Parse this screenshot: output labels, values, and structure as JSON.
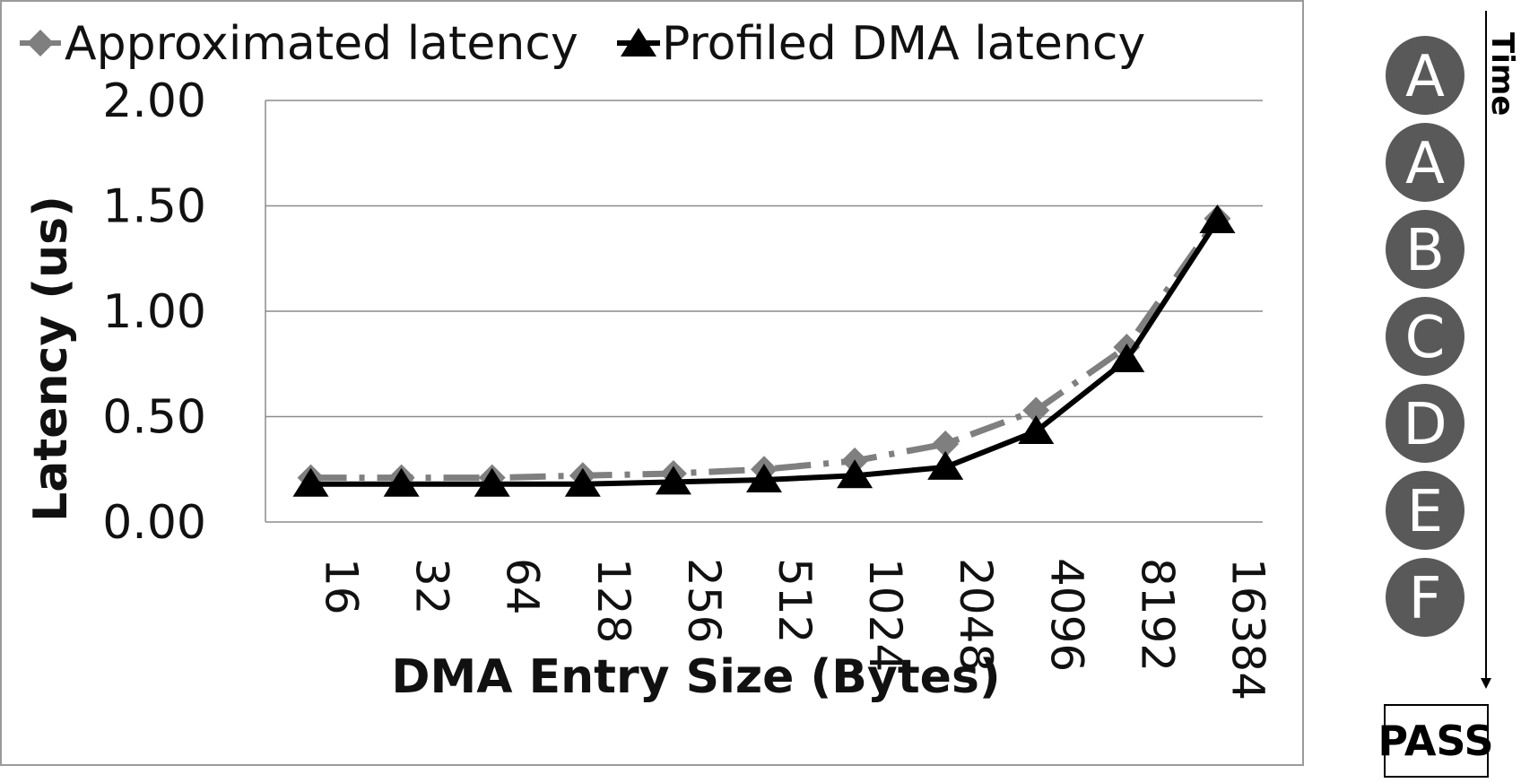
{
  "chart_data": {
    "type": "line",
    "title": "",
    "xlabel": "DMA Entry Size (Bytes)",
    "ylabel": "Latency (us)",
    "ylim": [
      0,
      2
    ],
    "yticks": [
      "0.00",
      "0.50",
      "1.00",
      "1.50",
      "2.00"
    ],
    "grid": true,
    "legend_position": "top",
    "categories": [
      "16",
      "32",
      "64",
      "128",
      "256",
      "512",
      "1024",
      "2048",
      "4096",
      "8192",
      "16384"
    ],
    "series": [
      {
        "name": "Approximated latency",
        "color": "#7f7f7f",
        "marker": "diamond",
        "line_style": "dash-dot",
        "values": [
          0.21,
          0.21,
          0.21,
          0.22,
          0.23,
          0.25,
          0.29,
          0.37,
          0.53,
          0.83,
          1.44
        ]
      },
      {
        "name": "Profiled DMA latency",
        "color": "#000000",
        "marker": "triangle",
        "line_style": "solid",
        "values": [
          0.18,
          0.18,
          0.18,
          0.18,
          0.19,
          0.2,
          0.22,
          0.26,
          0.43,
          0.77,
          1.43
        ]
      }
    ]
  },
  "sidebar": {
    "time_label": "Time",
    "steps": [
      "A",
      "A",
      "B",
      "C",
      "D",
      "E",
      "F"
    ],
    "step_color": "#595959",
    "result": "PASS"
  }
}
